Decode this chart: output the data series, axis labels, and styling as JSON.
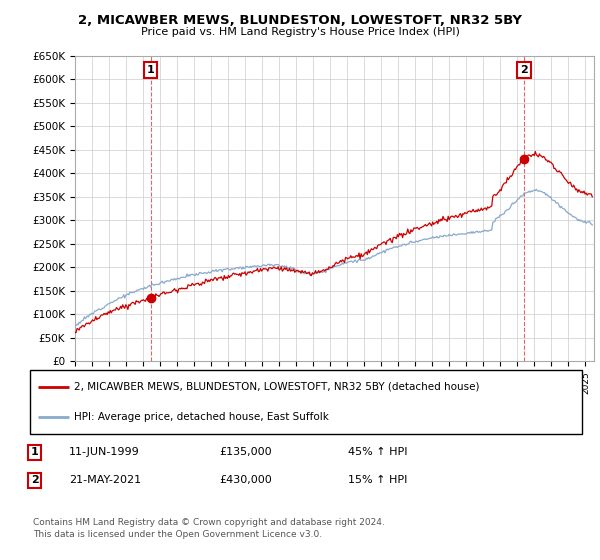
{
  "title": "2, MICAWBER MEWS, BLUNDESTON, LOWESTOFT, NR32 5BY",
  "subtitle": "Price paid vs. HM Land Registry's House Price Index (HPI)",
  "ylabel_ticks": [
    "£0",
    "£50K",
    "£100K",
    "£150K",
    "£200K",
    "£250K",
    "£300K",
    "£350K",
    "£400K",
    "£450K",
    "£500K",
    "£550K",
    "£600K",
    "£650K"
  ],
  "ytick_values": [
    0,
    50000,
    100000,
    150000,
    200000,
    250000,
    300000,
    350000,
    400000,
    450000,
    500000,
    550000,
    600000,
    650000
  ],
  "ylim": [
    0,
    650000
  ],
  "xlim_start": 1995.0,
  "xlim_end": 2025.5,
  "sale1_date": 1999.44,
  "sale1_price": 135000,
  "sale2_date": 2021.38,
  "sale2_price": 430000,
  "red_line_color": "#cc0000",
  "blue_line_color": "#88aacc",
  "grid_color": "#cccccc",
  "legend_label_red": "2, MICAWBER MEWS, BLUNDESTON, LOWESTOFT, NR32 5BY (detached house)",
  "legend_label_blue": "HPI: Average price, detached house, East Suffolk",
  "table_row1": [
    "1",
    "11-JUN-1999",
    "£135,000",
    "45% ↑ HPI"
  ],
  "table_row2": [
    "2",
    "21-MAY-2021",
    "£430,000",
    "15% ↑ HPI"
  ],
  "footnote": "Contains HM Land Registry data © Crown copyright and database right 2024.\nThis data is licensed under the Open Government Licence v3.0."
}
